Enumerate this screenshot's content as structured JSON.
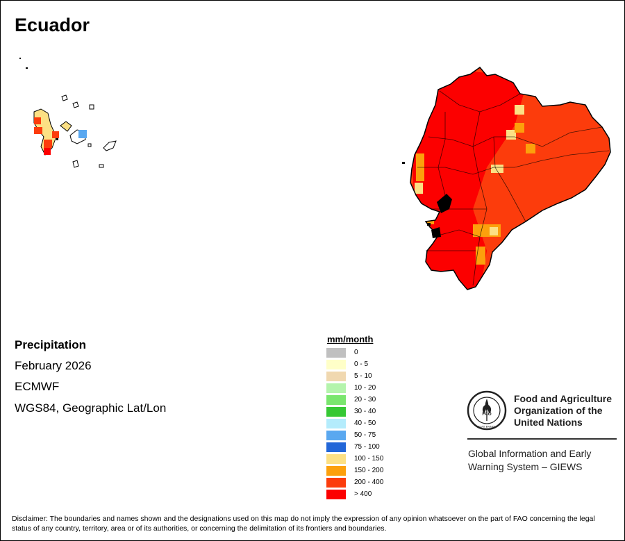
{
  "map": {
    "title": "Ecuador",
    "variable": "Precipitation",
    "period": "February 2026",
    "model": "ECMWF",
    "projection": "WGS84, Geographic Lat/Lon"
  },
  "legend": {
    "unit": "mm/month",
    "items": [
      {
        "label": "0",
        "color": "#c0c0c0"
      },
      {
        "label": "0 - 5",
        "color": "#ffffc8"
      },
      {
        "label": "5 - 10",
        "color": "#f0d8b0"
      },
      {
        "label": "10 - 20",
        "color": "#b4f4ac"
      },
      {
        "label": "20 - 30",
        "color": "#7ae66e"
      },
      {
        "label": "30 - 40",
        "color": "#36c834"
      },
      {
        "label": "40 - 50",
        "color": "#b4ecfc"
      },
      {
        "label": "50 - 75",
        "color": "#5aa8f0"
      },
      {
        "label": "75 - 100",
        "color": "#2266d8"
      },
      {
        "label": "100 - 150",
        "color": "#fce084"
      },
      {
        "label": "150 - 200",
        "color": "#fca00c"
      },
      {
        "label": "200 - 400",
        "color": "#fc3c0c"
      },
      {
        "label": "> 400",
        "color": "#fc0000"
      }
    ]
  },
  "organization": {
    "logo_icon": "fao-logo-icon",
    "logo_text": "FAO",
    "logo_motto": "FIAT PANIS",
    "name_lines": [
      "Food and Agriculture",
      "Organization of the",
      "United Nations"
    ],
    "system_lines": [
      "Global Information and Early",
      "Warning System – GIEWS"
    ]
  },
  "disclaimer": "Disclaimer: The boundaries and names shown and the designations used on this map do not imply the expression of any opinion whatsoever on the part of FAO concerning the legal status of any country, territory, area or of its authorities, or concerning the delimitation of its frontiers and boundaries."
}
